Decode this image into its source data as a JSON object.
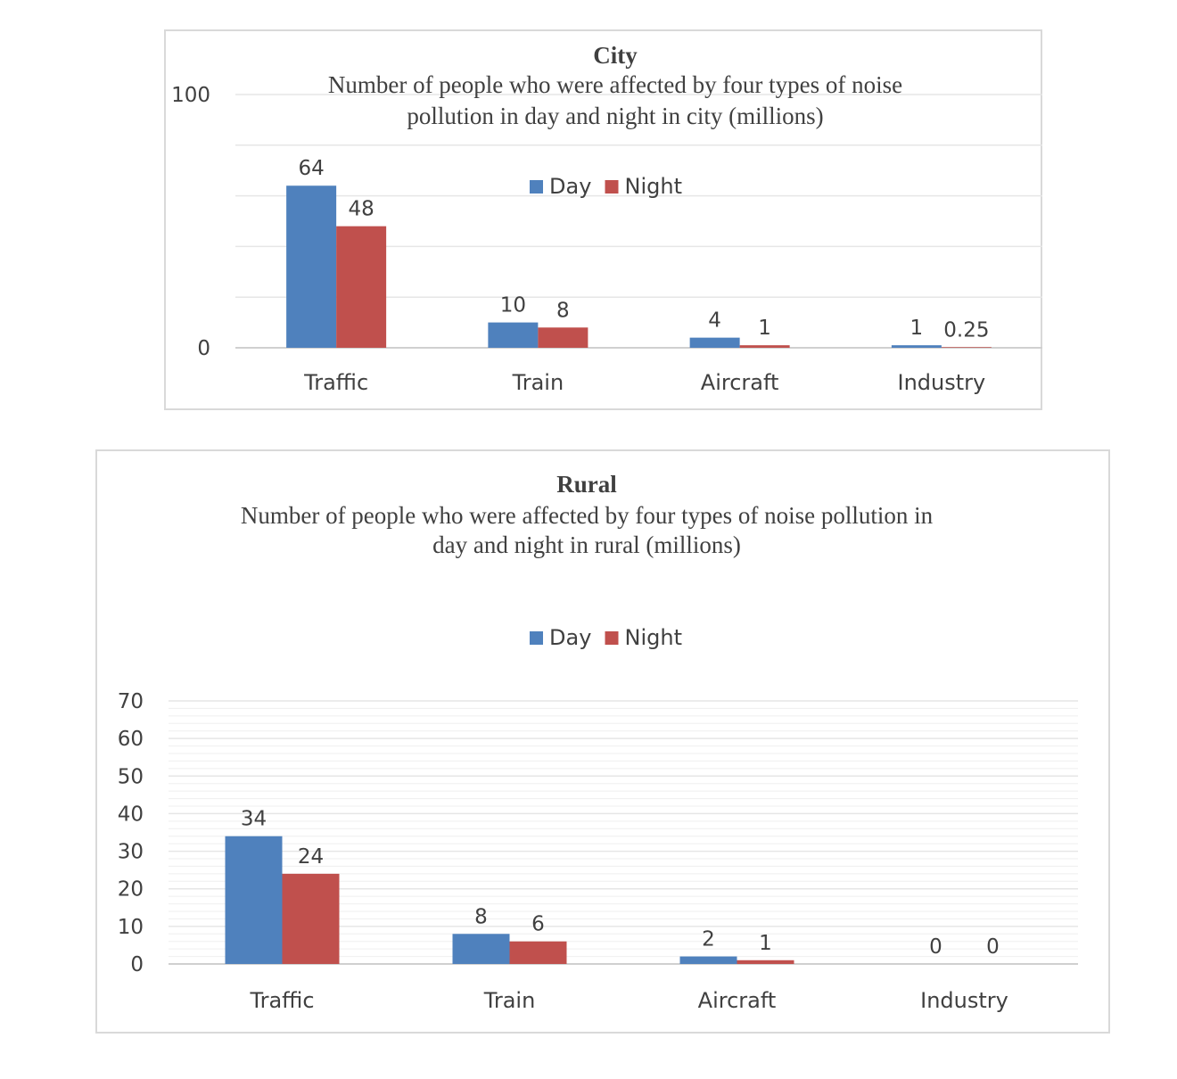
{
  "chart_data": [
    {
      "id": "city",
      "type": "bar",
      "title": "City",
      "subtitle_lines": [
        "Number of people who were affected by four types of noise",
        "pollution in day and night in city (millions)"
      ],
      "categories": [
        "Traffic",
        "Train",
        "Aircraft",
        "Industry"
      ],
      "series": [
        {
          "name": "Day",
          "values": [
            64,
            10,
            4,
            1
          ],
          "labels": [
            "64",
            "10",
            "4",
            "1"
          ]
        },
        {
          "name": "Night",
          "values": [
            48,
            8,
            1,
            0.25
          ],
          "labels": [
            "48",
            "8",
            "1",
            "0.25"
          ]
        }
      ],
      "ylim": [
        0,
        100
      ],
      "yticks": [
        "0",
        "100"
      ],
      "legend": "top-center",
      "xlabel": "",
      "ylabel": ""
    },
    {
      "id": "rural",
      "type": "bar",
      "title": "Rural",
      "subtitle_lines": [
        "Number of people who were affected by four types of noise pollution in",
        "day and night in rural (millions)"
      ],
      "categories": [
        "Traffic",
        "Train",
        "Aircraft",
        "Industry"
      ],
      "series": [
        {
          "name": "Day",
          "values": [
            34,
            8,
            2,
            0
          ],
          "labels": [
            "34",
            "8",
            "2",
            "0"
          ]
        },
        {
          "name": "Night",
          "values": [
            24,
            6,
            1,
            0
          ],
          "labels": [
            "24",
            "6",
            "1",
            "0"
          ]
        }
      ],
      "ylim": [
        0,
        70
      ],
      "yticks": [
        "0",
        "10",
        "20",
        "30",
        "40",
        "50",
        "60",
        "70"
      ],
      "legend": "top-center",
      "xlabel": "",
      "ylabel": ""
    }
  ],
  "colors": {
    "day": "#4f81bd",
    "night": "#c0504d"
  }
}
